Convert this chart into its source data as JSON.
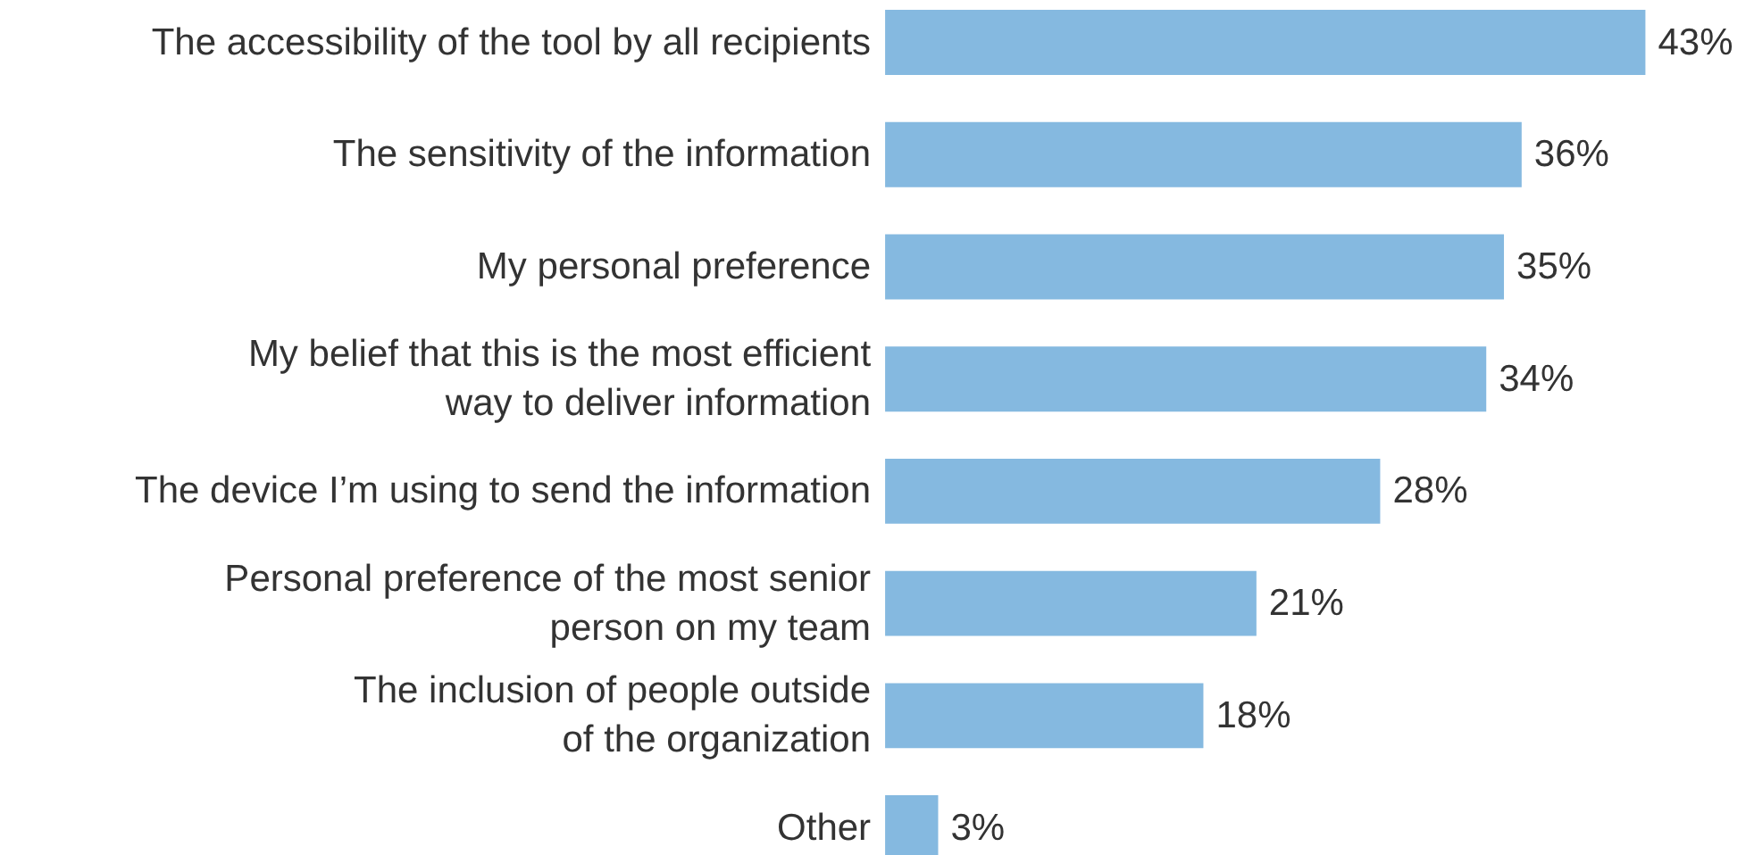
{
  "chart_data": {
    "type": "bar",
    "orientation": "horizontal",
    "color": "#85b9e0",
    "categories": [
      "The accessibility of the tool by all recipients",
      "The sensitivity of the information",
      "My personal preference",
      "My belief that this is the most efficient\nway to deliver information",
      "The device I’m using to send the information",
      "Personal preference of the most senior\nperson on my team",
      "The inclusion of people outside\nof the organization",
      "Other"
    ],
    "values": [
      43,
      36,
      35,
      34,
      28,
      21,
      18,
      3
    ],
    "value_labels": [
      "43%",
      "36%",
      "35%",
      "34%",
      "28%",
      "21%",
      "18%",
      "3%"
    ]
  }
}
